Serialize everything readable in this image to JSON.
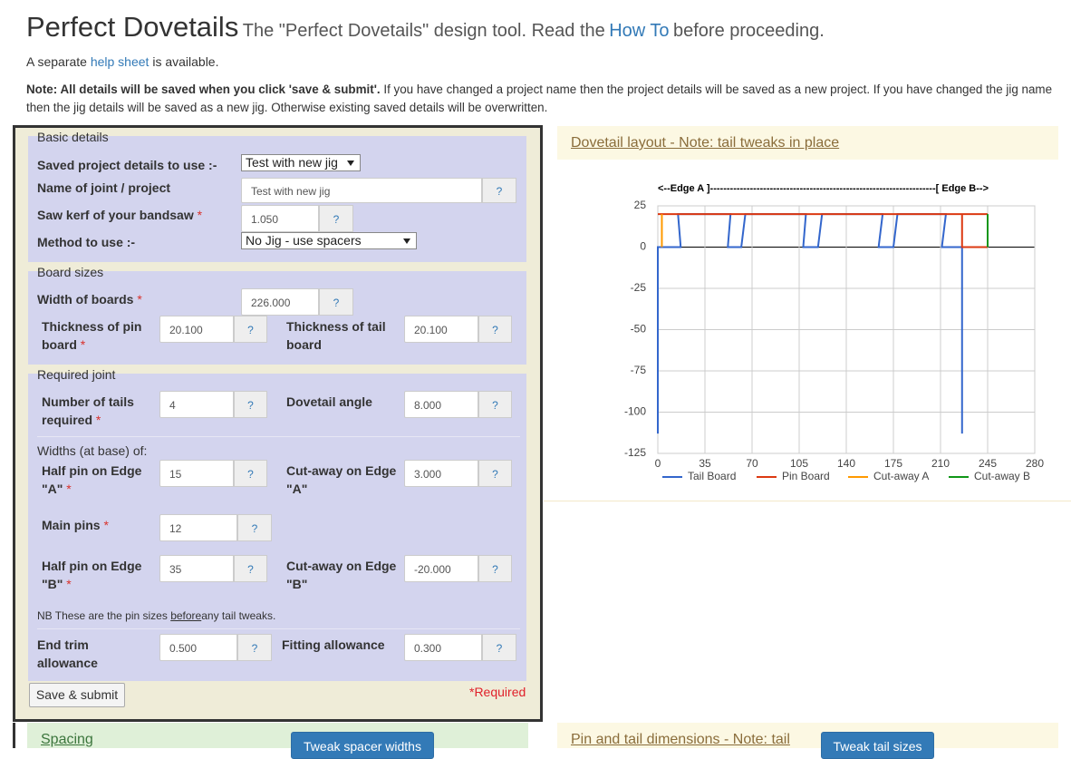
{
  "header": {
    "title": "Perfect Dovetails",
    "tagline": [
      "The \"Perfect Dovetails\" design tool. Read the",
      "How To",
      "before proceeding."
    ],
    "help_line": [
      "A separate",
      "help sheet",
      "is available."
    ],
    "note": {
      "bold": "Note: All details will be saved when you click 'save & submit'.",
      "text": "If you have changed a project name then the project details will be saved as a new project. If you have changed the jig name then the jig details will be saved as a new jig. Otherwise existing saved details will be overwritten."
    }
  },
  "form": {
    "sections": [
      {
        "legend": "Basic details",
        "fields": [
          {
            "label": "Saved project details to use :-",
            "value": "Test with new jig"
          },
          {
            "label": "Name of joint / project",
            "value": "Test with new jig",
            "help": "?"
          },
          {
            "label": "Saw kerf of your bandsaw",
            "required": "*",
            "value": "1.050",
            "help": "?"
          },
          {
            "label": "Method to use :-",
            "value": "No Jig - use spacers"
          }
        ]
      },
      {
        "legend": "Board sizes",
        "fields": [
          {
            "label": "Width of boards",
            "required": "*",
            "value": "226.000",
            "help": "?"
          },
          {
            "label": "Thickness of pin board",
            "required": "*",
            "value": "20.100",
            "help": "?"
          },
          {
            "label": "Thickness of tail board",
            "value": "20.100",
            "help": "?"
          }
        ]
      },
      {
        "legend": "Required joint",
        "subheading": "Widths (at base) of:",
        "note": [
          "NB These are the pin sizes",
          "before",
          "any tail tweaks."
        ],
        "fields": [
          {
            "label": "Number of tails required",
            "required": "*",
            "value": "4",
            "help": "?"
          },
          {
            "label": "Dovetail angle",
            "value": "8.000",
            "help": "?"
          },
          {
            "label": "Half pin on Edge \"A\"",
            "required": "*",
            "value": "15",
            "help": "?"
          },
          {
            "label": "Cut-away on Edge \"A\"",
            "value": "3.000",
            "help": "?"
          },
          {
            "label": "Main pins",
            "required": "*",
            "value": "12",
            "help": "?"
          },
          {
            "label": "Half pin on Edge \"B\"",
            "required": "*",
            "value": "35",
            "help": "?"
          },
          {
            "label": "Cut-away on Edge \"B\"",
            "value": "-20.000",
            "help": "?"
          },
          {
            "label": "End trim allowance",
            "value": "0.500",
            "help": "?"
          },
          {
            "label": "Fitting allowance",
            "value": "0.300",
            "help": "?"
          }
        ]
      }
    ],
    "submit": "Save & submit",
    "required_note": "*Required"
  },
  "layout_panel": {
    "heading": "Dovetail layout - Note: tail tweaks in place"
  },
  "bottom": {
    "spacing": "Spacing",
    "spacing_button": "Tweak spacer widths",
    "dimensions": "Pin and tail dimensions - Note: tail",
    "dimensions_button": "Tweak tail sizes"
  },
  "chart_data": {
    "type": "line",
    "annotation": "<--Edge A ]--------------------------------------------------------------------[ Edge B-->",
    "xlim": [
      0,
      280
    ],
    "ylim": [
      -125,
      25
    ],
    "xticks": [
      0,
      35,
      70,
      105,
      140,
      175,
      210,
      245,
      280
    ],
    "yticks": [
      25,
      0,
      -25,
      -50,
      -75,
      -100,
      -125
    ],
    "grid": true,
    "legend": "bottom",
    "series": [
      {
        "name": "Tail Board",
        "color": "#3366cc",
        "x": [
          0,
          0,
          17,
          15,
          54,
          52,
          62,
          65,
          110,
          108,
          119,
          122,
          167,
          164,
          175,
          178,
          214,
          211,
          226,
          226
        ],
        "values": [
          -113,
          0,
          0,
          20,
          20,
          0,
          0,
          20,
          20,
          0,
          0,
          20,
          20,
          0,
          0,
          20,
          20,
          0,
          0,
          -113
        ]
      },
      {
        "name": "Pin Board",
        "color": "#dc3912",
        "x": [
          0,
          245,
          null,
          226,
          226,
          245
        ],
        "values": [
          20,
          20,
          null,
          20,
          0,
          0
        ]
      },
      {
        "name": "Cut-away A",
        "color": "#ff9900",
        "x": [
          3,
          3
        ],
        "values": [
          20,
          0
        ]
      },
      {
        "name": "Cut-away B",
        "color": "#109618",
        "x": [
          245,
          245
        ],
        "values": [
          20,
          0
        ]
      }
    ]
  }
}
